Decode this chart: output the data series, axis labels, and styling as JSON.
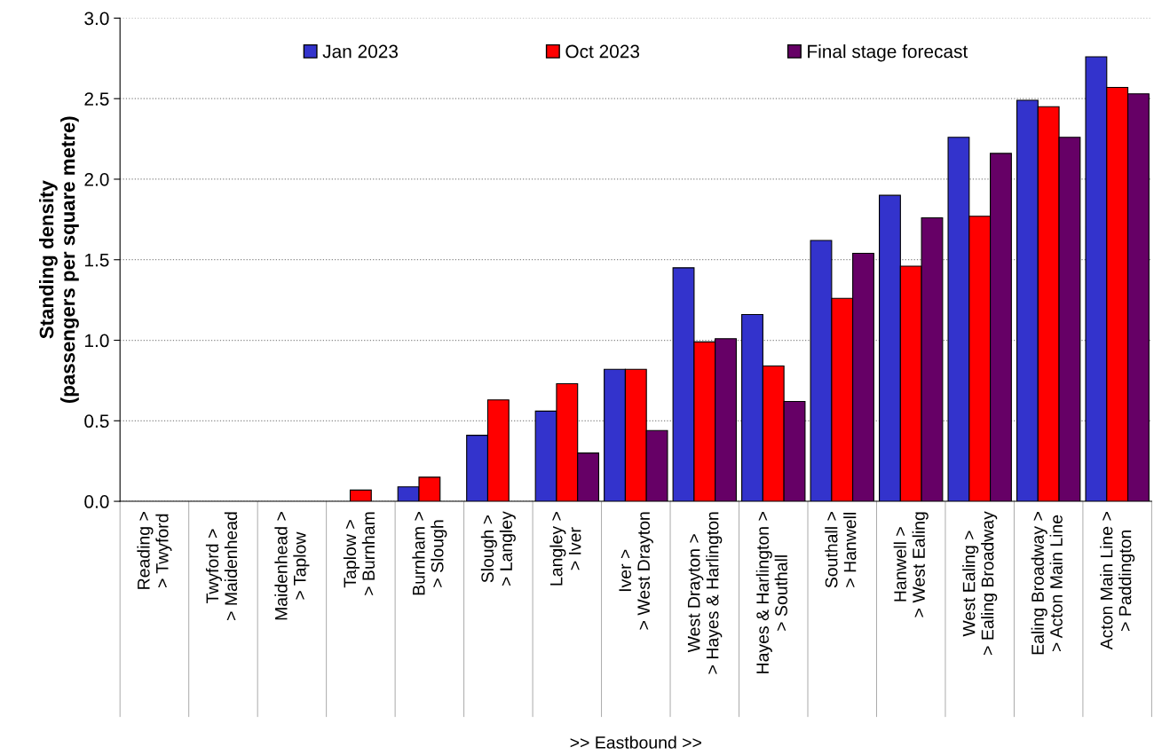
{
  "chart_data": {
    "type": "bar",
    "ylabel": "Standing density\n(passengers per square metre)",
    "xlabel": ">> Eastbound >>",
    "categories": [
      "Reading >\n> Twyford",
      "Twyford >\n> Maidenhead",
      "Maidenhead >\n> Taplow",
      "Taplow >\n> Burnham",
      "Burnham >\n> Slough",
      "Slough >\n> Langley",
      "Langley >\n> Iver",
      "Iver >\n> West Drayton",
      "West Drayton >\n> Hayes & Harlington",
      "Hayes & Harlington >\n> Southall",
      "Southall >\n> Hanwell",
      "Hanwell >\n> West Ealing",
      "West Ealing >\n> Ealing Broadway",
      "Ealing Broadway >\n> Acton Main Line",
      "Acton Main Line >\n> Paddington"
    ],
    "series": [
      {
        "name": "Jan 2023",
        "color": "#3333cc",
        "values": [
          null,
          null,
          null,
          null,
          0.09,
          0.41,
          0.56,
          0.82,
          1.45,
          1.16,
          1.62,
          1.9,
          2.26,
          2.49,
          2.76
        ]
      },
      {
        "name": "Oct 2023",
        "color": "#ff0000",
        "values": [
          null,
          null,
          null,
          0.07,
          0.15,
          0.63,
          0.73,
          0.82,
          0.99,
          0.84,
          1.26,
          1.46,
          1.77,
          2.45,
          2.57
        ]
      },
      {
        "name": "Final stage forecast",
        "color": "#660066",
        "values": [
          null,
          null,
          null,
          null,
          null,
          null,
          0.3,
          0.44,
          1.01,
          0.62,
          1.54,
          1.76,
          2.16,
          2.26,
          2.53
        ]
      }
    ],
    "ylim": [
      0,
      3.0
    ],
    "yticks": [
      {
        "value": 0,
        "label": "0.0"
      },
      {
        "value": 0.5,
        "label": "0.5"
      },
      {
        "value": 1.0,
        "label": "1.0"
      },
      {
        "value": 1.5,
        "label": "1.5"
      },
      {
        "value": 2.0,
        "label": "2.0"
      },
      {
        "value": 2.5,
        "label": "2.5"
      },
      {
        "value": 3.0,
        "label": "3.0"
      }
    ],
    "grid": "y",
    "legend": "top"
  }
}
